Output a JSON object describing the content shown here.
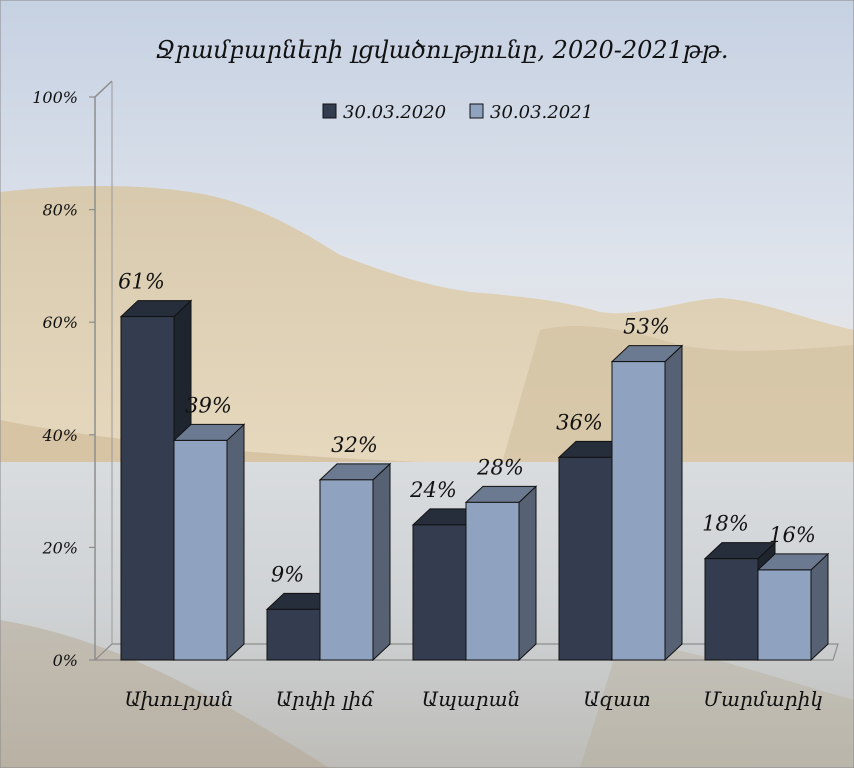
{
  "chart_data": {
    "type": "bar",
    "title": "Ջրամբարների լցվածությունը,  2020-2021թթ.",
    "categories": [
      "Ախուրյան",
      "Արփի լիճ",
      "Ապարան",
      "Ազատ",
      "Մարմարիկ"
    ],
    "series": [
      {
        "name": "30.03.2020",
        "values": [
          61,
          9,
          24,
          36,
          18
        ],
        "labels": [
          "61%",
          "9%",
          "24%",
          "36%",
          "18%"
        ],
        "color": "#333d4f"
      },
      {
        "name": "30.03.2021",
        "values": [
          39,
          32,
          28,
          53,
          16
        ],
        "labels": [
          "39%",
          "32%",
          "28%",
          "53%",
          "16%"
        ],
        "color": "#8fa2c0"
      }
    ],
    "y_ticks": [
      "0%",
      "20%",
      "40%",
      "60%",
      "80%",
      "100%"
    ],
    "ylim": [
      0,
      100
    ],
    "legend_position": "top",
    "grid": false,
    "style": "3d-clustered-column"
  }
}
